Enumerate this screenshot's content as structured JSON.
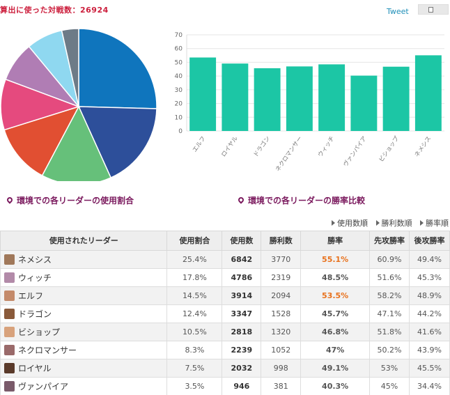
{
  "header": {
    "title": "算出に使った対戦数：26924",
    "tweet_label": "Tweet"
  },
  "captions": {
    "pie": "環境での各リーダーの使用割合",
    "bar": "環境での各リーダーの勝率比較"
  },
  "sort_links": [
    "使用数順",
    "勝利数順",
    "勝率順"
  ],
  "table": {
    "headers": [
      "使用されたリーダー",
      "使用割合",
      "使用数",
      "勝利数",
      "勝率",
      "先攻勝率",
      "後攻勝率"
    ],
    "rows": [
      {
        "name": "ネメシス",
        "share": "25.4%",
        "uses": "6842",
        "wins": "3770",
        "rate": "55.1%",
        "first": "60.9%",
        "second": "49.4%",
        "hi": true,
        "avatar": "#a0785a"
      },
      {
        "name": "ウィッチ",
        "share": "17.8%",
        "uses": "4786",
        "wins": "2319",
        "rate": "48.5%",
        "first": "51.6%",
        "second": "45.3%",
        "hi": false,
        "avatar": "#b28aa8"
      },
      {
        "name": "エルフ",
        "share": "14.5%",
        "uses": "3914",
        "wins": "2094",
        "rate": "53.5%",
        "first": "58.2%",
        "second": "48.9%",
        "hi": true,
        "avatar": "#c48a6a"
      },
      {
        "name": "ドラゴン",
        "share": "12.4%",
        "uses": "3347",
        "wins": "1528",
        "rate": "45.7%",
        "first": "47.1%",
        "second": "44.2%",
        "hi": false,
        "avatar": "#8a5a3a"
      },
      {
        "name": "ビショップ",
        "share": "10.5%",
        "uses": "2818",
        "wins": "1320",
        "rate": "46.8%",
        "first": "51.8%",
        "second": "41.6%",
        "hi": false,
        "avatar": "#d8a27c"
      },
      {
        "name": "ネクロマンサー",
        "share": "8.3%",
        "uses": "2239",
        "wins": "1052",
        "rate": "47%",
        "first": "50.2%",
        "second": "43.9%",
        "hi": false,
        "avatar": "#9a6a6a"
      },
      {
        "name": "ロイヤル",
        "share": "7.5%",
        "uses": "2032",
        "wins": "998",
        "rate": "49.1%",
        "first": "53%",
        "second": "45.5%",
        "hi": false,
        "avatar": "#5a3a2a"
      },
      {
        "name": "ヴァンパイア",
        "share": "3.5%",
        "uses": "946",
        "wins": "381",
        "rate": "40.3%",
        "first": "45%",
        "second": "34.4%",
        "hi": false,
        "avatar": "#7a5a6a"
      }
    ]
  },
  "chart_data": [
    {
      "type": "pie",
      "title": "",
      "slices": [
        {
          "label": "ネメシス",
          "value": 25.4,
          "color": "#0f75bd"
        },
        {
          "label": "ウィッチ",
          "value": 17.8,
          "color": "#2d4f9a"
        },
        {
          "label": "エルフ",
          "value": 14.5,
          "color": "#66c07a"
        },
        {
          "label": "ドラゴン",
          "value": 12.4,
          "color": "#e14f32"
        },
        {
          "label": "ビショップ",
          "value": 10.5,
          "color": "#e54a7e"
        },
        {
          "label": "ネクロマンサー",
          "value": 8.3,
          "color": "#b07db4"
        },
        {
          "label": "ロイヤル",
          "value": 7.5,
          "color": "#8fd8f0"
        },
        {
          "label": "ヴァンパイア",
          "value": 3.5,
          "color": "#6d7b87"
        }
      ]
    },
    {
      "type": "bar",
      "title": "",
      "xlabel": "",
      "ylabel": "",
      "categories": [
        "エルフ",
        "ロイヤル",
        "ドラゴン",
        "ネクロマンサー",
        "ウィッチ",
        "ヴァンパイア",
        "ビショップ",
        "ネメシス"
      ],
      "values": [
        53.5,
        49.1,
        45.7,
        47,
        48.5,
        40.3,
        46.8,
        55.1
      ],
      "yticks": [
        0,
        10,
        20,
        30,
        40,
        50,
        60,
        70
      ],
      "ylim": [
        0,
        70
      ],
      "grid": true,
      "bar_color": "#1cc6a5"
    }
  ]
}
